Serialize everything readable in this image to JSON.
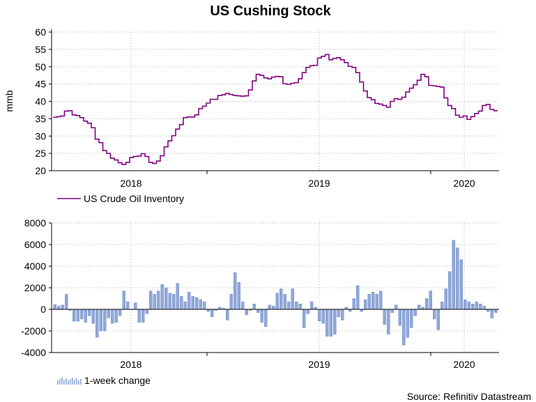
{
  "colors": {
    "line": "#800080",
    "bar": "#8fa8d8",
    "bar_edge": "#6a80c0",
    "zero": "#000000"
  },
  "chart_data": [
    {
      "type": "line",
      "title": "US Cushing Stock",
      "ylabel": "mmb",
      "ylim": [
        20,
        60
      ],
      "yticks": [
        20,
        25,
        30,
        35,
        40,
        45,
        50,
        55,
        60
      ],
      "year_labels": [
        "2018",
        "2019",
        "2020"
      ],
      "legend": "US Crude Oil Inventory",
      "series": [
        {
          "name": "US Crude Oil Inventory",
          "weeks_from_start": 116,
          "values": [
            35.4,
            35.6,
            35.8,
            37.2,
            37.3,
            36.1,
            35.9,
            35.3,
            34.3,
            33.7,
            32.4,
            29.1,
            28.1,
            25.8,
            25.0,
            23.6,
            23.1,
            22.3,
            21.8,
            22.4,
            23.8,
            24.1,
            24.2,
            24.9,
            24.1,
            22.4,
            22.1,
            22.8,
            24.3,
            26.9,
            28.6,
            30.1,
            32.0,
            33.3,
            35.3,
            35.5,
            35.5,
            36.1,
            37.9,
            38.6,
            39.5,
            40.6,
            40.6,
            41.7,
            41.9,
            42.3,
            42.0,
            41.7,
            41.6,
            41.5,
            41.6,
            43.3,
            45.9,
            47.8,
            47.5,
            46.8,
            46.5,
            47.0,
            47.2,
            47.1,
            45.1,
            44.9,
            45.2,
            45.4,
            46.5,
            48.3,
            49.8,
            50.3,
            50.4,
            52.5,
            53.0,
            53.5,
            52.0,
            52.4,
            52.6,
            52.0,
            51.2,
            50.1,
            49.8,
            48.3,
            45.6,
            43.0,
            41.1,
            40.5,
            39.4,
            39.2,
            38.8,
            38.3,
            40.0,
            40.8,
            40.6,
            41.2,
            42.7,
            43.8,
            44.8,
            46.1,
            47.8,
            47.1,
            44.6,
            44.5,
            44.3,
            44.1,
            41.0,
            38.8,
            37.9,
            36.0,
            35.4,
            35.8,
            34.8,
            35.6,
            36.5,
            37.2,
            38.8,
            39.1,
            37.7,
            37.3
          ]
        }
      ]
    },
    {
      "type": "bar",
      "ylim": [
        -4000,
        8000
      ],
      "yticks": [
        -4000,
        -2000,
        0,
        2000,
        4000,
        6000,
        8000
      ],
      "year_labels": [
        "2018",
        "2019",
        "2020"
      ],
      "legend": "1-week change",
      "source": "Source: Refinitiv Datastream",
      "series": [
        {
          "name": "1-week change",
          "values": [
            450,
            300,
            400,
            1400,
            -100,
            -1100,
            -1100,
            -900,
            -1200,
            -600,
            -1300,
            -2600,
            -2000,
            -2000,
            -800,
            -1300,
            -1200,
            -600,
            1700,
            700,
            0,
            600,
            -1200,
            -1200,
            -400,
            1700,
            1400,
            1700,
            2300,
            2000,
            1500,
            1400,
            2400,
            1200,
            700,
            1600,
            1200,
            1100,
            900,
            700,
            -200,
            -700,
            -100,
            200,
            100,
            -1000,
            1400,
            3400,
            2500,
            700,
            -500,
            -100,
            500,
            -300,
            -1200,
            -1600,
            400,
            300,
            1500,
            1900,
            1400,
            700,
            1900,
            700,
            500,
            -1700,
            -400,
            700,
            200,
            -1100,
            -1300,
            -2500,
            -2500,
            -2300,
            -700,
            -1000,
            200,
            -200,
            1000,
            2200,
            -200,
            900,
            1400,
            1600,
            1400,
            1700,
            -1400,
            -2300,
            -300,
            400,
            -1500,
            -3300,
            -2600,
            -1700,
            -600,
            400,
            200,
            1000,
            1700,
            -900,
            -1900,
            700,
            1900,
            3500,
            6400,
            5700,
            4600,
            900,
            700,
            500,
            700,
            500,
            300,
            -200,
            -800,
            -300
          ]
        }
      ]
    }
  ]
}
